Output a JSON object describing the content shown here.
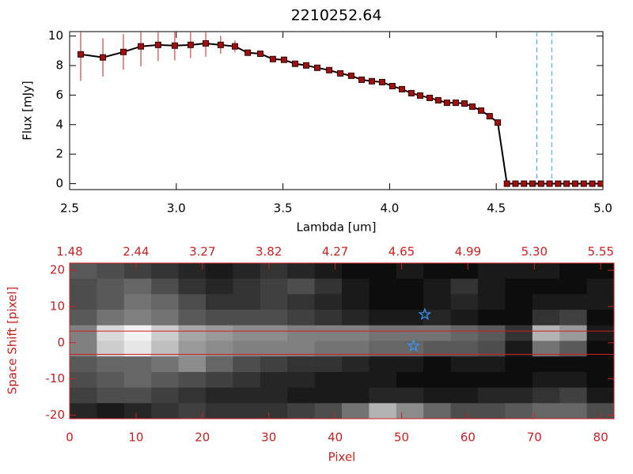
{
  "chart_data": [
    {
      "type": "line",
      "title": "2210252.64",
      "xlabel": "Lambda [um]",
      "ylabel": "Flux [mJy]",
      "xlim": [
        2.5,
        5.0
      ],
      "ylim": [
        -0.4,
        10.3
      ],
      "xticks": [
        2.5,
        {
          "value": 3,
          "label": "3.0"
        },
        3.5,
        {
          "value": 4,
          "label": "4.0"
        },
        4.5,
        {
          "value": 5,
          "label": "5.0"
        }
      ],
      "yticks": [
        0,
        2,
        4,
        6,
        8,
        10
      ],
      "x": [
        2.552,
        2.656,
        2.752,
        2.834,
        2.915,
        2.993,
        3.067,
        3.138,
        3.208,
        3.275,
        3.335,
        3.394,
        3.453,
        3.505,
        3.557,
        3.609,
        3.661,
        3.717,
        3.769,
        3.82,
        3.869,
        3.917,
        3.965,
        4.013,
        4.058,
        4.102,
        4.143,
        4.188,
        4.228,
        4.269,
        4.31,
        4.351,
        4.388,
        4.429,
        4.469,
        4.507,
        4.55,
        4.59,
        4.63,
        4.67,
        4.71,
        4.75,
        4.79,
        4.83,
        4.87,
        4.91,
        4.95,
        4.99
      ],
      "values": [
        8.76,
        8.55,
        8.92,
        9.3,
        9.4,
        9.35,
        9.4,
        9.5,
        9.4,
        9.3,
        8.87,
        8.8,
        8.44,
        8.39,
        8.12,
        8.01,
        7.85,
        7.69,
        7.47,
        7.31,
        7.04,
        6.94,
        6.88,
        6.61,
        6.4,
        6.13,
        5.97,
        5.81,
        5.65,
        5.48,
        5.48,
        5.43,
        5.22,
        4.95,
        4.57,
        4.14,
        0,
        0,
        0,
        0,
        0,
        0,
        0,
        0,
        0,
        0,
        0,
        0
      ],
      "errors": [
        1.8,
        1.3,
        1.2,
        1.35,
        1.1,
        1.0,
        0.9,
        0.9,
        0.6,
        0.4,
        0.2,
        0.2,
        0.1,
        0.1,
        0.1,
        0.1,
        0.1,
        0.1,
        0.1,
        0.1,
        0.1,
        0.1,
        0.1,
        0.1,
        0.1,
        0.1,
        0.1,
        0.1,
        0.1,
        0.1,
        0.1,
        0.1,
        0.1,
        0.1,
        0.1,
        0.1,
        0,
        0,
        0,
        0,
        0,
        0,
        0,
        0,
        0,
        0,
        0,
        0
      ],
      "line_color": "#000000",
      "marker_color": "#a01010",
      "error_color": "#cc2020",
      "vlines": [
        4.69,
        4.76
      ],
      "vline_color": "#33aacc"
    },
    {
      "type": "image",
      "xlabel": "Pixel",
      "ylabel": "Space Shift [pixel]",
      "xlim": [
        0,
        82
      ],
      "ylim": [
        -21,
        22
      ],
      "xticks": [
        0,
        10,
        20,
        30,
        40,
        50,
        60,
        70,
        80
      ],
      "yticks": [
        -20,
        -10,
        0,
        10,
        20
      ],
      "top_ticks": [
        {
          "value": 0,
          "label": "1.48"
        },
        {
          "value": 10,
          "label": "2.44"
        },
        {
          "value": 20,
          "label": "3.27"
        },
        {
          "value": 30,
          "label": "3.82"
        },
        {
          "value": 40,
          "label": "4.27"
        },
        {
          "value": 50,
          "label": "4.65"
        },
        {
          "value": 60,
          "label": "4.99"
        },
        {
          "value": 70,
          "label": "5.30"
        },
        {
          "value": 80,
          "label": "5.55"
        }
      ],
      "axis_color": "#cc2020",
      "values": [
        [
          0.35,
          0.3,
          0.25,
          0.2,
          0.15,
          0.1,
          0.15,
          0.2,
          0.15,
          0.1,
          0.05,
          0.05,
          0.1,
          0.05,
          0.05,
          0.1,
          0.1,
          0.1,
          0.05,
          0.05
        ],
        [
          0.3,
          0.35,
          0.4,
          0.3,
          0.2,
          0.15,
          0.2,
          0.25,
          0.3,
          0.2,
          0.1,
          0.05,
          0.05,
          0.1,
          0.2,
          0.1,
          0.05,
          0.05,
          0.05,
          0.1
        ],
        [
          0.3,
          0.35,
          0.45,
          0.4,
          0.3,
          0.2,
          0.2,
          0.25,
          0.2,
          0.15,
          0.1,
          0.05,
          0.05,
          0.1,
          0.15,
          0.1,
          0.05,
          0.1,
          0.1,
          0.1
        ],
        [
          0.35,
          0.45,
          0.5,
          0.45,
          0.35,
          0.3,
          0.3,
          0.3,
          0.25,
          0.2,
          0.15,
          0.1,
          0.1,
          0.15,
          0.1,
          0.05,
          0.05,
          0.2,
          0.25,
          0.05
        ],
        [
          0.5,
          0.85,
          0.95,
          0.8,
          0.65,
          0.6,
          0.55,
          0.55,
          0.5,
          0.5,
          0.5,
          0.45,
          0.45,
          0.45,
          0.4,
          0.35,
          0.2,
          0.7,
          0.6,
          0.1
        ],
        [
          0.5,
          0.8,
          0.9,
          0.75,
          0.6,
          0.55,
          0.5,
          0.5,
          0.5,
          0.45,
          0.45,
          0.4,
          0.4,
          0.35,
          0.35,
          0.3,
          0.1,
          0.45,
          0.35,
          0.05
        ],
        [
          0.35,
          0.4,
          0.4,
          0.45,
          0.55,
          0.4,
          0.3,
          0.25,
          0.2,
          0.2,
          0.15,
          0.1,
          0.1,
          0.05,
          0.1,
          0.1,
          0.05,
          0.05,
          0.05,
          0.05
        ],
        [
          0.3,
          0.35,
          0.4,
          0.35,
          0.3,
          0.25,
          0.2,
          0.15,
          0.15,
          0.1,
          0.1,
          0.1,
          0.05,
          0.05,
          0.05,
          0.05,
          0.05,
          0.1,
          0.1,
          0.05
        ],
        [
          0.25,
          0.3,
          0.3,
          0.25,
          0.2,
          0.15,
          0.15,
          0.15,
          0.1,
          0.1,
          0.1,
          0.15,
          0.15,
          0.1,
          0.1,
          0.15,
          0.15,
          0.2,
          0.25,
          0.1
        ],
        [
          0.15,
          0.1,
          0.15,
          0.2,
          0.25,
          0.2,
          0.2,
          0.2,
          0.25,
          0.3,
          0.45,
          0.7,
          0.55,
          0.4,
          0.3,
          0.3,
          0.35,
          0.4,
          0.4,
          0.3
        ]
      ],
      "hlines": [
        3.2,
        -3.2
      ],
      "hline_color": "#cc2020",
      "markers": {
        "x": [
          53.5,
          51.8
        ],
        "y": [
          7.8,
          -0.9
        ],
        "color": "#3399ff"
      }
    }
  ]
}
